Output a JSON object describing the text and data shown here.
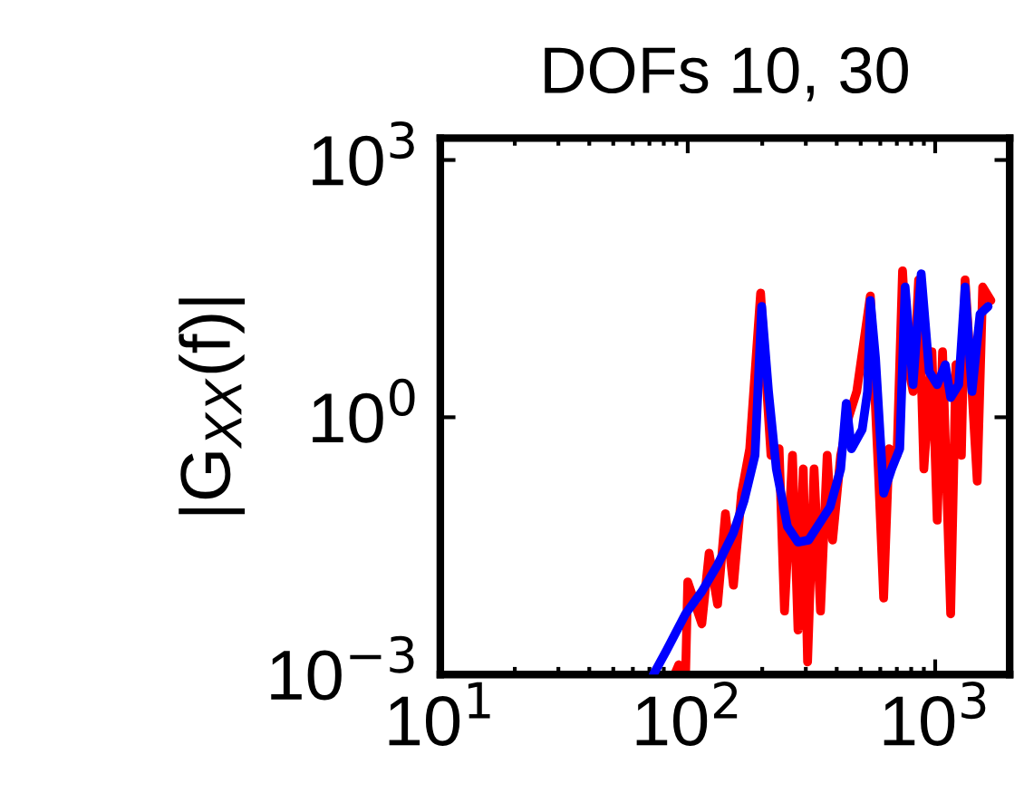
{
  "chart_data": {
    "type": "line",
    "title": "DOFs 10, 30",
    "ylabel": "|G$_{XX}$(f)|",
    "log": "xy",
    "grid": false,
    "legend": false,
    "marker": "none",
    "line_style": "solid",
    "xlim": [
      10,
      2000
    ],
    "ylim": [
      0.001,
      1800
    ],
    "xticks": [
      {
        "value": 10,
        "label": "10$^{1}$"
      },
      {
        "value": 100,
        "label": "10$^{2}$"
      },
      {
        "value": 1000,
        "label": "10$^{3}$"
      }
    ],
    "yticks": [
      {
        "value": 0.001,
        "label": "10$^{−3}$"
      },
      {
        "value": 1,
        "label": "10$^{0}$"
      },
      {
        "value": 1000,
        "label": "10$^{3}$"
      }
    ],
    "series": [
      {
        "color": "#ff0000",
        "x": [
          88.5,
          92,
          98,
          100,
          114,
          122,
          132,
          142,
          153,
          165,
          178,
          197,
          217,
          234,
          246,
          265,
          279,
          293,
          305,
          324,
          344,
          366,
          385,
          415,
          447,
          482,
          547,
          589,
          619,
          651,
          701,
          738,
          775,
          814,
          857,
          900,
          970,
          1019,
          1071,
          1155,
          1213,
          1276,
          1321,
          1409,
          1479,
          1556,
          1679
        ],
        "values": [
          0.001,
          0.0013,
          0.001,
          0.012,
          0.0039,
          0.026,
          0.0066,
          0.075,
          0.011,
          0.13,
          0.43,
          28,
          0.36,
          0.43,
          0.0055,
          0.36,
          0.0033,
          0.25,
          0.0014,
          0.25,
          0.0055,
          0.36,
          0.037,
          0.36,
          1.0,
          2.0,
          26,
          0.25,
          0.0078,
          0.43,
          0.36,
          51,
          4.1,
          2.0,
          40,
          0.25,
          5.8,
          0.063,
          5.8,
          0.0051,
          4.1,
          0.36,
          40,
          2.0,
          0.18,
          33,
          23
        ]
      },
      {
        "color": "#0000ff",
        "x": [
          72.6,
          82,
          98,
          114,
          132,
          153,
          169,
          187,
          199,
          212,
          228,
          253,
          279,
          308,
          376,
          415,
          437,
          459,
          507,
          533,
          547,
          574,
          619,
          667,
          719,
          756,
          814,
          878,
          946,
          1019,
          1099,
          1155,
          1245,
          1321,
          1409,
          1518,
          1637
        ],
        "values": [
          0.001,
          0.0019,
          0.0051,
          0.0093,
          0.019,
          0.045,
          0.107,
          0.36,
          19.6,
          2.0,
          0.25,
          0.053,
          0.035,
          0.037,
          0.09,
          0.25,
          1.45,
          0.43,
          0.72,
          2.0,
          23,
          4.9,
          0.13,
          0.25,
          0.43,
          33,
          2.4,
          47,
          3.4,
          2.4,
          4.1,
          1.7,
          2.4,
          33,
          2.0,
          16,
          19.6
        ]
      }
    ]
  }
}
